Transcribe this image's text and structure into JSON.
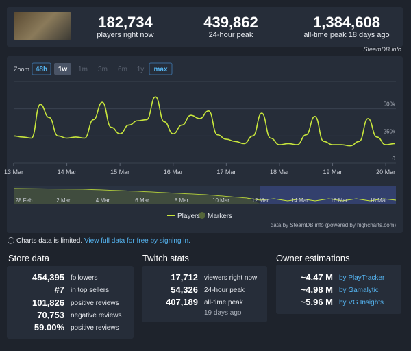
{
  "header": {
    "stats": [
      {
        "value": "182,734",
        "label": "players right now"
      },
      {
        "value": "439,862",
        "label": "24-hour peak"
      },
      {
        "value": "1,384,608",
        "label": "all-time peak 18 days ago"
      }
    ],
    "brand": "SteamDB.info"
  },
  "zoom": {
    "label": "Zoom",
    "buttons": [
      "48h",
      "1w",
      "1m",
      "3m",
      "6m",
      "1y",
      "max"
    ]
  },
  "chart_data": {
    "type": "line",
    "categories": [
      "13 Mar",
      null,
      null,
      null,
      null,
      null,
      "14 Mar",
      null,
      null,
      null,
      null,
      null,
      "15 Mar",
      null,
      null,
      null,
      null,
      null,
      "16 Mar",
      null,
      null,
      null,
      null,
      null,
      "17 Mar",
      null,
      null,
      null,
      null,
      null,
      "18 Mar",
      null,
      null,
      null,
      null,
      null,
      "19 Mar",
      null,
      null,
      null,
      null,
      null,
      "20 Mar",
      null
    ],
    "series": [
      {
        "name": "Players",
        "color": "#c8e63c",
        "values": [
          250000,
          240000,
          230000,
          540000,
          420000,
          250000,
          230000,
          240000,
          230000,
          400000,
          560000,
          330000,
          270000,
          350000,
          390000,
          400000,
          610000,
          380000,
          270000,
          350000,
          440000,
          410000,
          480000,
          260000,
          220000,
          200000,
          180000,
          250000,
          460000,
          230000,
          170000,
          180000,
          170000,
          260000,
          430000,
          200000,
          170000,
          170000,
          160000,
          200000,
          410000,
          240000,
          170000,
          180000
        ]
      }
    ],
    "markers": {
      "name": "Markers",
      "color": "#55663a"
    },
    "ylim": [
      0,
      750000
    ],
    "yticks": [
      0,
      {
        "value": 250000,
        "label": "250k"
      },
      {
        "value": 500000,
        "label": "500k"
      }
    ],
    "grid": true
  },
  "navigator": {
    "labels": [
      "28 Feb",
      "2 Mar",
      "4 Mar",
      "6 Mar",
      "8 Mar",
      "10 Mar",
      "12 Mar",
      "14 Mar",
      "16 Mar",
      "18 Mar"
    ]
  },
  "credit": "data by SteamDB.info (powered by highcharts.com)",
  "notice": {
    "text": "Charts data is limited.",
    "link": "View full data for free by signing in."
  },
  "store": {
    "title": "Store data",
    "rows": [
      [
        "454,395",
        "followers"
      ],
      [
        "#7",
        "in top sellers"
      ],
      [
        "101,826",
        "positive reviews"
      ],
      [
        "70,753",
        "negative reviews"
      ],
      [
        "59.00%",
        "positive reviews"
      ]
    ]
  },
  "twitch": {
    "title": "Twitch stats",
    "rows": [
      [
        "17,712",
        "viewers right now"
      ],
      [
        "54,326",
        "24-hour peak"
      ],
      [
        "407,189",
        "all-time peak"
      ]
    ],
    "note": "19 days ago"
  },
  "owners": {
    "title": "Owner estimations",
    "rows": [
      [
        "~4.47 M",
        "by PlayTracker"
      ],
      [
        "~4.98 M",
        "by Gamalytic"
      ],
      [
        "~5.96 M",
        "by VG Insights"
      ]
    ]
  }
}
